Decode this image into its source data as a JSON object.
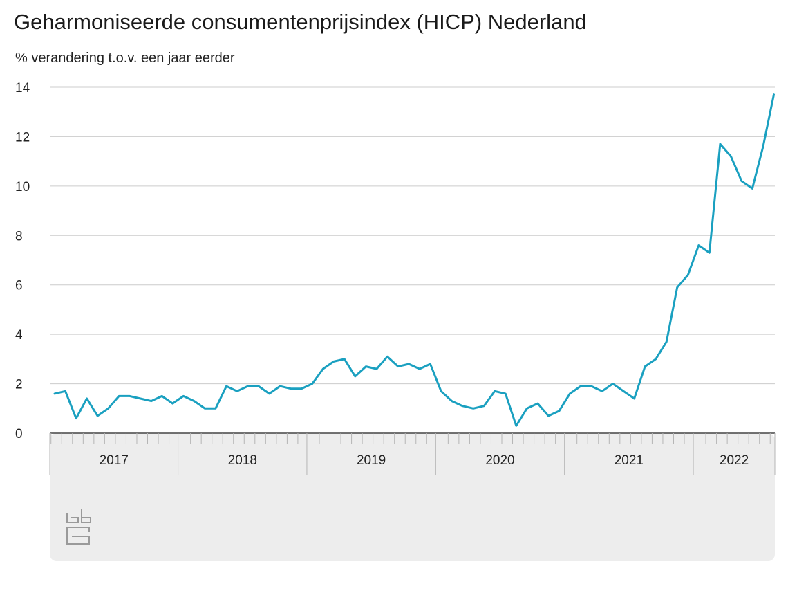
{
  "header": {
    "title": "Geharmoniseerde consumentenprijsindex (HICP) Nederland",
    "subtitle": "% verandering t.o.v. een jaar eerder"
  },
  "colors": {
    "line": "#1aa0c0",
    "grid": "#cccccc",
    "axis_band": "#ededed"
  },
  "logo": {
    "name": "cbs-logo"
  },
  "chart_data": {
    "type": "line",
    "title": "Geharmoniseerde consumentenprijsindex (HICP) Nederland",
    "ylabel": "% verandering t.o.v. een jaar eerder",
    "xlabel": "",
    "ylim": [
      0,
      14
    ],
    "yticks": [
      0,
      2,
      4,
      6,
      8,
      10,
      12,
      14
    ],
    "grid": true,
    "legend": "none",
    "x_start": "2017-01",
    "x_end": "2022-09",
    "years": [
      "2017",
      "2018",
      "2019",
      "2020",
      "2021",
      "2022"
    ],
    "series": [
      {
        "values": [
          1.6,
          1.7,
          0.6,
          1.4,
          0.7,
          1.0,
          1.5,
          1.5,
          1.4,
          1.3,
          1.5,
          1.2,
          1.5,
          1.3,
          1.0,
          1.0,
          1.9,
          1.7,
          1.9,
          1.9,
          1.6,
          1.9,
          1.8,
          1.8,
          2.0,
          2.6,
          2.9,
          3.0,
          2.3,
          2.7,
          2.6,
          3.1,
          2.7,
          2.8,
          2.6,
          2.8,
          1.7,
          1.3,
          1.1,
          1.0,
          1.1,
          1.7,
          1.6,
          0.3,
          1.0,
          1.2,
          0.7,
          0.9,
          1.6,
          1.9,
          1.9,
          1.7,
          2.0,
          1.7,
          1.4,
          2.7,
          3.0,
          3.7,
          5.9,
          6.4,
          7.6,
          7.3,
          11.7,
          11.2,
          10.2,
          9.9,
          11.6,
          13.7
        ]
      }
    ]
  }
}
